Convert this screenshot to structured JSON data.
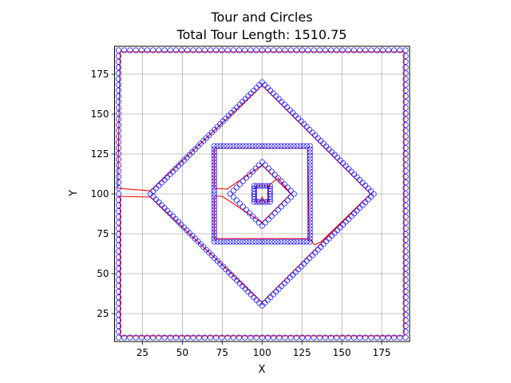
{
  "chart_data": {
    "type": "scatter",
    "title": "Tour and Circles",
    "subtitle": "Total Tour Length: 1510.75",
    "xlabel": "X",
    "ylabel": "Y",
    "xlim": [
      7.5,
      192.5
    ],
    "ylim": [
      7.5,
      192.5
    ],
    "xticks": [
      25,
      50,
      75,
      100,
      125,
      150,
      175
    ],
    "yticks": [
      25,
      50,
      75,
      100,
      125,
      150,
      175
    ],
    "grid": true,
    "colors": {
      "circles": "#0000ff",
      "tour": "#ff0000",
      "grid": "#b0b0b0"
    },
    "shapes": [
      {
        "kind": "square",
        "center": [
          100,
          100
        ],
        "half_size": 90,
        "n_points": 200
      },
      {
        "kind": "diamond",
        "center": [
          100,
          100
        ],
        "radius": 70,
        "n_points": 160
      },
      {
        "kind": "square",
        "center": [
          100,
          100
        ],
        "half_size": 30,
        "n_points": 120
      },
      {
        "kind": "diamond",
        "center": [
          100,
          100
        ],
        "radius": 20,
        "n_points": 40
      },
      {
        "kind": "square",
        "center": [
          100,
          100
        ],
        "half_size": 5,
        "n_points": 24
      }
    ],
    "tour_path": [
      [
        9.5,
        98.5
      ],
      [
        30,
        98
      ],
      [
        100,
        32
      ],
      [
        168,
        100
      ],
      [
        100,
        168
      ],
      [
        30,
        102
      ],
      [
        9.5,
        103.5
      ],
      [
        11,
        189
      ],
      [
        189,
        189
      ],
      [
        189,
        11
      ],
      [
        11,
        11
      ],
      [
        11,
        98.5
      ],
      [
        9.5,
        98.5
      ]
    ],
    "inner_tour_path": [
      [
        70,
        98.5
      ],
      [
        75,
        98.5
      ],
      [
        100,
        82
      ],
      [
        118,
        100
      ],
      [
        100,
        118
      ],
      [
        78,
        103
      ],
      [
        70,
        103.5
      ],
      [
        70,
        128.5
      ],
      [
        128.5,
        128.5
      ],
      [
        129.5,
        72
      ],
      [
        70,
        72
      ],
      [
        70,
        98.5
      ]
    ],
    "link_path": [
      [
        129.5,
        72
      ],
      [
        133,
        68
      ],
      [
        137,
        70
      ],
      [
        168,
        100
      ]
    ],
    "core_tour_path": [
      [
        96,
        100
      ],
      [
        96,
        95
      ],
      [
        99,
        95
      ],
      [
        100,
        98
      ],
      [
        101,
        95
      ],
      [
        104,
        95
      ],
      [
        104,
        105
      ],
      [
        96,
        105
      ],
      [
        96,
        100
      ]
    ],
    "core_link_path": [
      [
        104,
        105
      ],
      [
        110,
        110
      ],
      [
        118,
        100
      ]
    ]
  }
}
